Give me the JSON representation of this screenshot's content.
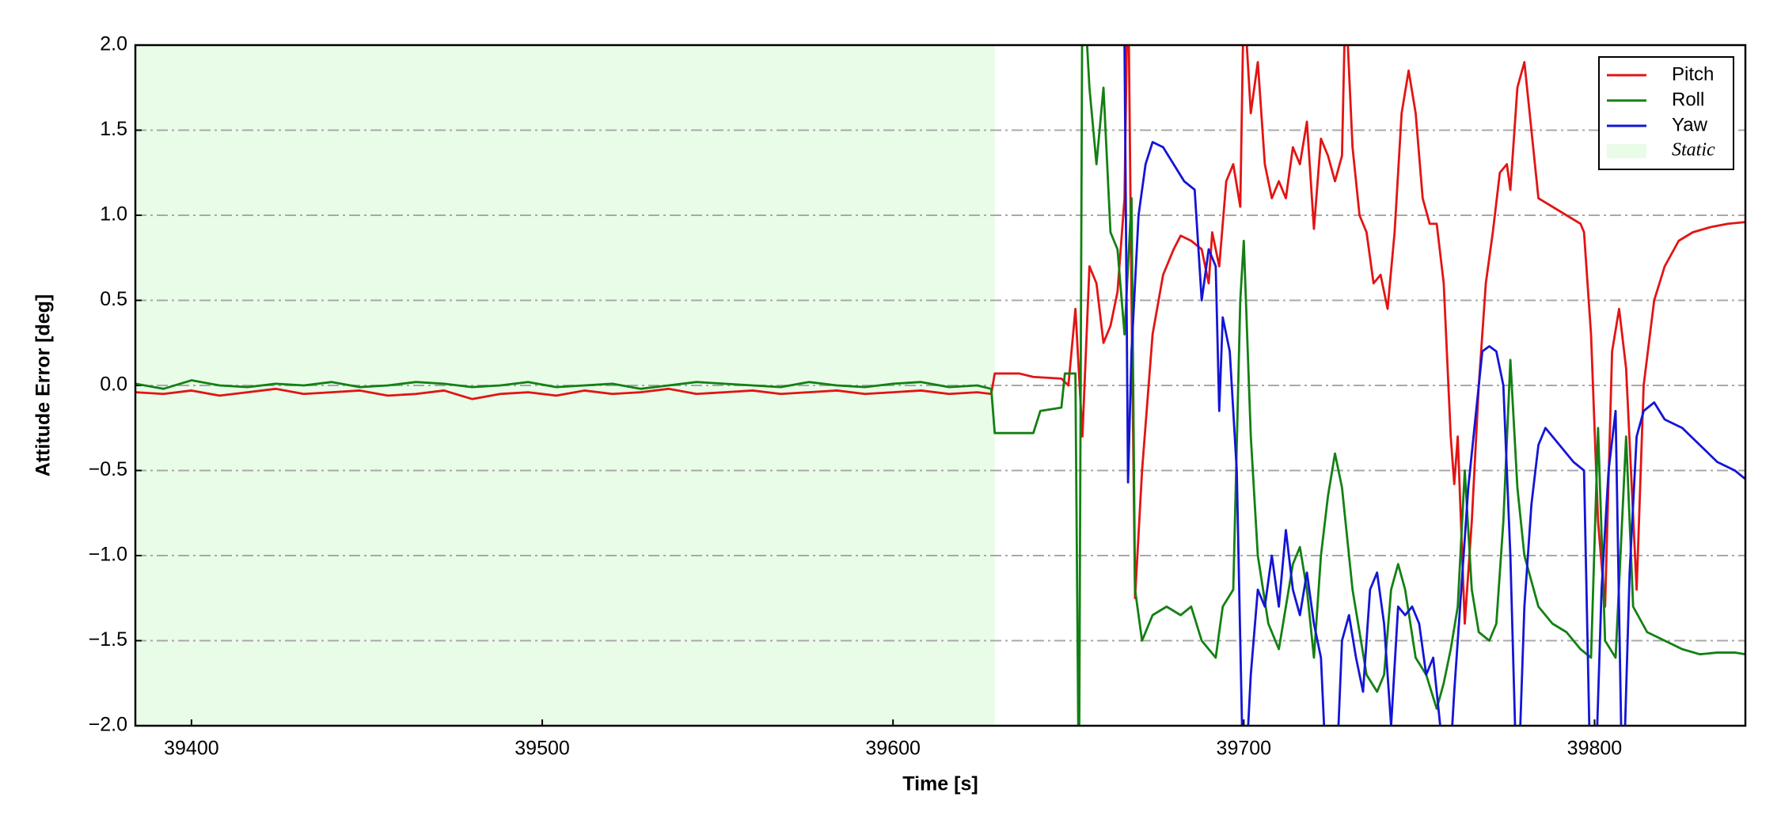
{
  "chart_data": {
    "type": "line",
    "xlabel": "Time [s]",
    "ylabel": "Attitude Error [deg]",
    "xlim": [
      39384,
      39843
    ],
    "ylim": [
      -2,
      2
    ],
    "xticks": [
      39400,
      39500,
      39600,
      39700,
      39800
    ],
    "yticks": [
      {
        "value": -2,
        "label": "−2.0"
      },
      {
        "value": -1.5,
        "label": "−1.5"
      },
      {
        "value": -1,
        "label": "−1.0"
      },
      {
        "value": -0.5,
        "label": "−0.5"
      },
      {
        "value": 0,
        "label": "0.0"
      },
      0.5,
      {
        "value": 1,
        "label": "1.0"
      },
      1.5,
      {
        "value": 2,
        "label": "2.0"
      }
    ],
    "grid": true,
    "legend": "upper right",
    "span": {
      "name": "Static",
      "range": [
        39384,
        39629
      ],
      "color": "#e8fce8"
    },
    "series": [
      {
        "name": "Pitch",
        "color": "#e31414",
        "x": [
          39384,
          39392,
          39400,
          39408,
          39416,
          39424,
          39432,
          39440,
          39448,
          39456,
          39464,
          39472,
          39480,
          39488,
          39496,
          39504,
          39512,
          39520,
          39528,
          39536,
          39544,
          39552,
          39560,
          39568,
          39576,
          39584,
          39592,
          39600,
          39608,
          39616,
          39624,
          39628,
          39629,
          39636,
          39640,
          39648,
          39650,
          39652,
          39654,
          39656,
          39658,
          39660,
          39662,
          39664,
          39666,
          39667,
          39668,
          39669,
          39671,
          39674,
          39677,
          39680,
          39682,
          39685,
          39688,
          39690,
          39691,
          39693,
          39695,
          39697,
          39699,
          39700,
          39702,
          39704,
          39706,
          39708,
          39710,
          39712,
          39714,
          39716,
          39718,
          39720,
          39722,
          39724,
          39726,
          39728,
          39729,
          39731,
          39733,
          39735,
          39737,
          39739,
          39741,
          39743,
          39745,
          39747,
          39749,
          39751,
          39753,
          39755,
          39757,
          39759,
          39760,
          39761,
          39763,
          39765,
          39767,
          39769,
          39771,
          39773,
          39775,
          39776,
          39778,
          39780,
          39782,
          39784,
          39788,
          39792,
          39796,
          39797,
          39799,
          39801,
          39803,
          39805,
          39807,
          39809,
          39812,
          39814,
          39817,
          39820,
          39824,
          39828,
          39833,
          39838,
          39843
        ],
        "values": [
          -0.04,
          -0.05,
          -0.03,
          -0.06,
          -0.04,
          -0.02,
          -0.05,
          -0.04,
          -0.03,
          -0.06,
          -0.05,
          -0.03,
          -0.08,
          -0.05,
          -0.04,
          -0.06,
          -0.03,
          -0.05,
          -0.04,
          -0.02,
          -0.05,
          -0.04,
          -0.03,
          -0.05,
          -0.04,
          -0.03,
          -0.05,
          -0.04,
          -0.03,
          -0.05,
          -0.04,
          -0.05,
          0.07,
          0.07,
          0.05,
          0.04,
          0.0,
          0.45,
          -0.3,
          0.7,
          0.6,
          0.25,
          0.35,
          0.55,
          1.1,
          2.5,
          0.5,
          -1.25,
          -0.5,
          0.3,
          0.65,
          0.8,
          0.88,
          0.85,
          0.8,
          0.6,
          0.9,
          0.7,
          1.2,
          1.3,
          1.05,
          2.3,
          1.6,
          1.9,
          1.3,
          1.1,
          1.2,
          1.1,
          1.4,
          1.3,
          1.55,
          0.92,
          1.45,
          1.35,
          1.2,
          1.35,
          2.3,
          1.4,
          1.0,
          0.9,
          0.6,
          0.65,
          0.45,
          0.9,
          1.6,
          1.85,
          1.6,
          1.1,
          0.95,
          0.95,
          0.6,
          -0.3,
          -0.58,
          -0.3,
          -1.4,
          -0.8,
          0.0,
          0.6,
          0.9,
          1.25,
          1.3,
          1.15,
          1.75,
          1.9,
          1.5,
          1.1,
          1.05,
          1.0,
          0.95,
          0.9,
          0.3,
          -0.8,
          -1.3,
          0.2,
          0.45,
          0.1,
          -1.2,
          0.0,
          0.5,
          0.7,
          0.85,
          0.9,
          0.93,
          0.95,
          0.96
        ]
      },
      {
        "name": "Roll",
        "color": "#138013",
        "x": [
          39384,
          39392,
          39400,
          39408,
          39416,
          39424,
          39432,
          39440,
          39448,
          39456,
          39464,
          39472,
          39480,
          39488,
          39496,
          39504,
          39512,
          39520,
          39528,
          39536,
          39544,
          39552,
          39560,
          39568,
          39576,
          39584,
          39592,
          39600,
          39608,
          39616,
          39624,
          39628,
          39629,
          39640,
          39642,
          39648,
          39649,
          39652,
          39653,
          39654,
          39656,
          39658,
          39660,
          39662,
          39664,
          39666,
          39668,
          39669,
          39671,
          39674,
          39678,
          39682,
          39685,
          39688,
          39690,
          39692,
          39694,
          39697,
          39699,
          39700,
          39702,
          39704,
          39707,
          39710,
          39712,
          39714,
          39716,
          39718,
          39720,
          39722,
          39724,
          39726,
          39728,
          39731,
          39735,
          39738,
          39740,
          39742,
          39744,
          39746,
          39749,
          39752,
          39755,
          39757,
          39759,
          39761,
          39763,
          39765,
          39767,
          39770,
          39772,
          39774,
          39776,
          39778,
          39780,
          39784,
          39788,
          39792,
          39796,
          39799,
          39801,
          39803,
          39806,
          39809,
          39811,
          39815,
          39820,
          39825,
          39830,
          39835,
          39840,
          39843
        ],
        "values": [
          0.01,
          -0.02,
          0.03,
          0.0,
          -0.01,
          0.01,
          0.0,
          0.02,
          -0.01,
          0.0,
          0.02,
          0.01,
          -0.01,
          0.0,
          0.02,
          -0.01,
          0.0,
          0.01,
          -0.02,
          0.0,
          0.02,
          0.01,
          0.0,
          -0.01,
          0.02,
          0.0,
          -0.01,
          0.01,
          0.02,
          -0.01,
          0.0,
          -0.02,
          -0.28,
          -0.28,
          -0.15,
          -0.13,
          0.07,
          0.07,
          -2.5,
          2.5,
          1.75,
          1.3,
          1.75,
          0.9,
          0.8,
          0.3,
          1.1,
          -1.2,
          -1.5,
          -1.35,
          -1.3,
          -1.35,
          -1.3,
          -1.5,
          -1.55,
          -1.6,
          -1.3,
          -1.2,
          0.5,
          0.85,
          -0.3,
          -1.0,
          -1.4,
          -1.55,
          -1.3,
          -1.05,
          -0.95,
          -1.2,
          -1.6,
          -1.0,
          -0.65,
          -0.4,
          -0.6,
          -1.2,
          -1.7,
          -1.8,
          -1.7,
          -1.2,
          -1.05,
          -1.2,
          -1.6,
          -1.7,
          -1.9,
          -1.75,
          -1.55,
          -1.3,
          -0.5,
          -1.2,
          -1.45,
          -1.5,
          -1.4,
          -0.8,
          0.15,
          -0.6,
          -1.0,
          -1.3,
          -1.4,
          -1.45,
          -1.55,
          -1.6,
          -0.25,
          -1.5,
          -1.6,
          -0.3,
          -1.3,
          -1.45,
          -1.5,
          -1.55,
          -1.58,
          -1.57,
          -1.57,
          -1.58
        ]
      },
      {
        "name": "Yaw",
        "color": "#1414d8",
        "x": [
          39666,
          39667,
          39668,
          39670,
          39672,
          39674,
          39677,
          39680,
          39683,
          39686,
          39688,
          39690,
          39692,
          39693,
          39694,
          39696,
          39698,
          39700,
          39702,
          39704,
          39706,
          39708,
          39710,
          39712,
          39714,
          39716,
          39718,
          39720,
          39722,
          39724,
          39726,
          39728,
          39730,
          39732,
          39734,
          39736,
          39738,
          39740,
          39742,
          39744,
          39746,
          39748,
          39750,
          39752,
          39754,
          39756,
          39758,
          39760,
          39762,
          39764,
          39766,
          39768,
          39770,
          39772,
          39774,
          39776,
          39778,
          39780,
          39782,
          39784,
          39786,
          39790,
          39794,
          39797,
          39799,
          39800,
          39802,
          39804,
          39806,
          39808,
          39810,
          39812,
          39814,
          39817,
          39820,
          39825,
          39830,
          39835,
          39840,
          39843
        ],
        "values": [
          2.0,
          -0.57,
          0.2,
          1.0,
          1.3,
          1.43,
          1.4,
          1.3,
          1.2,
          1.15,
          0.5,
          0.8,
          0.7,
          -0.15,
          0.4,
          0.2,
          -0.5,
          -2.5,
          -1.7,
          -1.2,
          -1.3,
          -1.0,
          -1.3,
          -0.85,
          -1.2,
          -1.35,
          -1.1,
          -1.4,
          -1.6,
          -2.5,
          -2.5,
          -1.5,
          -1.35,
          -1.6,
          -1.8,
          -1.2,
          -1.1,
          -1.4,
          -2.0,
          -1.3,
          -1.35,
          -1.3,
          -1.4,
          -1.7,
          -1.6,
          -2.0,
          -2.5,
          -1.8,
          -1.2,
          -0.6,
          -0.2,
          0.2,
          0.23,
          0.2,
          0.0,
          -1.0,
          -2.5,
          -1.3,
          -0.7,
          -0.35,
          -0.25,
          -0.35,
          -0.45,
          -0.5,
          -2.5,
          -2.5,
          -1.2,
          -0.5,
          -0.15,
          -2.5,
          -1.1,
          -0.3,
          -0.15,
          -0.1,
          -0.2,
          -0.25,
          -0.35,
          -0.45,
          -0.5,
          -0.55
        ]
      }
    ]
  }
}
